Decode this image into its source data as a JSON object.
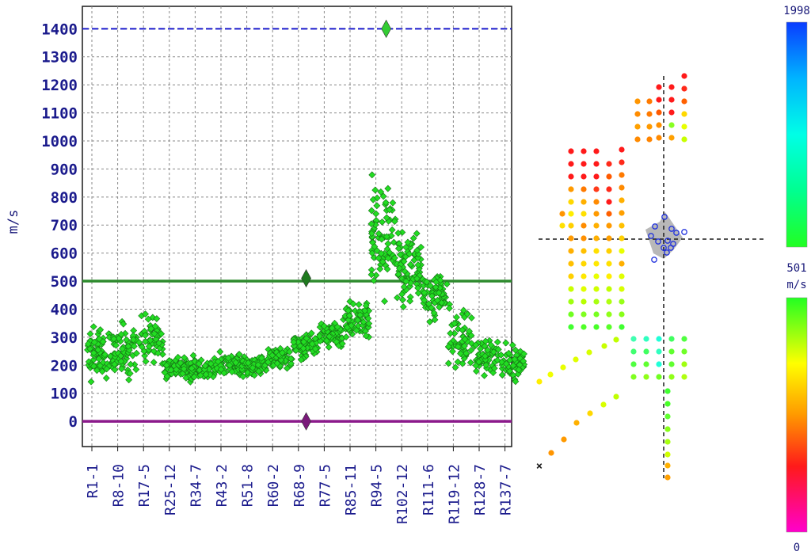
{
  "chart_data": [
    {
      "type": "scatter",
      "ylabel": "m/s",
      "ylim": [
        -90,
        1480
      ],
      "yticks": [
        0,
        100,
        200,
        300,
        400,
        500,
        600,
        700,
        800,
        900,
        1000,
        1100,
        1200,
        1300,
        1400
      ],
      "x_categories": [
        "R1-1",
        "R8-10",
        "R17-5",
        "R25-12",
        "R34-7",
        "R43-2",
        "R51-8",
        "R60-2",
        "R68-9",
        "R77-5",
        "R85-11",
        "R94-5",
        "R102-12",
        "R111-6",
        "R119-12",
        "R128-7",
        "R137-7"
      ],
      "grid": true,
      "reference_lines": [
        {
          "value": 1400,
          "color": "#1a1acc",
          "style": "dashed"
        },
        {
          "value": 500,
          "color": "#2e8b2e",
          "style": "solid"
        },
        {
          "value": 0,
          "color": "#8b1a8b",
          "style": "solid"
        }
      ],
      "marker_color": "#22dd22",
      "highlight_markers": [
        {
          "category_index": 11.4,
          "value": 1400,
          "color": "#33cc33"
        },
        {
          "category_index": 8.3,
          "value": 510,
          "color": "#1e7a1e"
        },
        {
          "category_index": 8.3,
          "value": 0,
          "color": "#7a1a7a"
        }
      ],
      "point_clusters": [
        {
          "category_index": 0.0,
          "mean": 250,
          "spread": 120,
          "count": 70
        },
        {
          "category_index": 1.0,
          "mean": 260,
          "spread": 130,
          "count": 70
        },
        {
          "category_index": 2.0,
          "mean": 300,
          "spread": 120,
          "count": 60
        },
        {
          "category_index": 3.0,
          "mean": 190,
          "spread": 50,
          "count": 70
        },
        {
          "category_index": 4.0,
          "mean": 190,
          "spread": 60,
          "count": 70
        },
        {
          "category_index": 5.0,
          "mean": 205,
          "spread": 55,
          "count": 70
        },
        {
          "category_index": 6.0,
          "mean": 200,
          "spread": 50,
          "count": 70
        },
        {
          "category_index": 7.0,
          "mean": 225,
          "spread": 55,
          "count": 70
        },
        {
          "category_index": 8.0,
          "mean": 270,
          "spread": 60,
          "count": 70
        },
        {
          "category_index": 9.0,
          "mean": 310,
          "spread": 60,
          "count": 70
        },
        {
          "category_index": 10.0,
          "mean": 360,
          "spread": 90,
          "count": 70
        },
        {
          "category_index": 11.0,
          "mean": 650,
          "spread": 260,
          "count": 80
        },
        {
          "category_index": 12.0,
          "mean": 550,
          "spread": 170,
          "count": 80
        },
        {
          "category_index": 13.0,
          "mean": 450,
          "spread": 120,
          "count": 70
        },
        {
          "category_index": 14.0,
          "mean": 300,
          "spread": 160,
          "count": 60
        },
        {
          "category_index": 15.0,
          "mean": 230,
          "spread": 90,
          "count": 60
        },
        {
          "category_index": 16.0,
          "mean": 210,
          "spread": 80,
          "count": 60
        }
      ]
    },
    {
      "type": "heatmap",
      "description_label_none": "",
      "colorbar_top": {
        "max_label": "1998",
        "min_label": "501",
        "unit": "m/s",
        "colors": [
          "#0a3cff",
          "#00b4ff",
          "#00ffe6",
          "#00ff90",
          "#22ff22"
        ]
      },
      "colorbar_bottom": {
        "max_label": "",
        "min_label": "0",
        "colors": [
          "#22ff22",
          "#ffff00",
          "#ff9900",
          "#ff1a1a",
          "#ff00cc"
        ]
      },
      "points": [
        {
          "x": 805,
          "y": 128,
          "v": "#ff9500"
        },
        {
          "x": 820,
          "y": 128,
          "v": "#ff7a00"
        },
        {
          "x": 805,
          "y": 144,
          "v": "#ff8c00"
        },
        {
          "x": 820,
          "y": 144,
          "v": "#ff7a00"
        },
        {
          "x": 805,
          "y": 160,
          "v": "#ffa000"
        },
        {
          "x": 820,
          "y": 160,
          "v": "#ff9a00"
        },
        {
          "x": 805,
          "y": 176,
          "v": "#ff8a00"
        },
        {
          "x": 820,
          "y": 176,
          "v": "#ff8400"
        },
        {
          "x": 832,
          "y": 110,
          "v": "#ff1a1a"
        },
        {
          "x": 848,
          "y": 110,
          "v": "#ff1a1a"
        },
        {
          "x": 864,
          "y": 96,
          "v": "#ff1a1a"
        },
        {
          "x": 832,
          "y": 126,
          "v": "#ff1a1a"
        },
        {
          "x": 848,
          "y": 126,
          "v": "#ff1a1a"
        },
        {
          "x": 864,
          "y": 112,
          "v": "#ff2a1a"
        },
        {
          "x": 832,
          "y": 142,
          "v": "#ff5a00"
        },
        {
          "x": 848,
          "y": 142,
          "v": "#ff1a1a"
        },
        {
          "x": 864,
          "y": 128,
          "v": "#ff6000"
        },
        {
          "x": 832,
          "y": 158,
          "v": "#ff9000"
        },
        {
          "x": 848,
          "y": 158,
          "v": "#88ff22"
        },
        {
          "x": 864,
          "y": 144,
          "v": "#ffd800"
        },
        {
          "x": 832,
          "y": 174,
          "v": "#ff8a00"
        },
        {
          "x": 848,
          "y": 174,
          "v": "#ffa000"
        },
        {
          "x": 864,
          "y": 160,
          "v": "#e8ff00"
        },
        {
          "x": 864,
          "y": 176,
          "v": "#c8ff00"
        },
        {
          "x": 721,
          "y": 191,
          "v": "#ff1a1a"
        },
        {
          "x": 737,
          "y": 191,
          "v": "#ff1a1a"
        },
        {
          "x": 753,
          "y": 191,
          "v": "#ff1a1a"
        },
        {
          "x": 785,
          "y": 189,
          "v": "#ff1a1a"
        },
        {
          "x": 721,
          "y": 207,
          "v": "#ff1a1a"
        },
        {
          "x": 737,
          "y": 207,
          "v": "#ff1a1a"
        },
        {
          "x": 753,
          "y": 207,
          "v": "#ff1a1a"
        },
        {
          "x": 769,
          "y": 207,
          "v": "#ff2a1a"
        },
        {
          "x": 785,
          "y": 205,
          "v": "#ff2a1a"
        },
        {
          "x": 721,
          "y": 223,
          "v": "#ff1a1a"
        },
        {
          "x": 737,
          "y": 223,
          "v": "#ff1a1a"
        },
        {
          "x": 753,
          "y": 223,
          "v": "#ff1a1a"
        },
        {
          "x": 769,
          "y": 223,
          "v": "#ff5a00"
        },
        {
          "x": 785,
          "y": 221,
          "v": "#ff7a00"
        },
        {
          "x": 721,
          "y": 239,
          "v": "#ff9a00"
        },
        {
          "x": 737,
          "y": 239,
          "v": "#ff7a00"
        },
        {
          "x": 753,
          "y": 239,
          "v": "#ff3a1a"
        },
        {
          "x": 769,
          "y": 239,
          "v": "#ff2a1a"
        },
        {
          "x": 785,
          "y": 237,
          "v": "#ff8a00"
        },
        {
          "x": 721,
          "y": 255,
          "v": "#ffd800"
        },
        {
          "x": 737,
          "y": 255,
          "v": "#ffb000"
        },
        {
          "x": 753,
          "y": 255,
          "v": "#ff8a00"
        },
        {
          "x": 769,
          "y": 255,
          "v": "#ff1a1a"
        },
        {
          "x": 785,
          "y": 253,
          "v": "#ffb000"
        },
        {
          "x": 710,
          "y": 270,
          "v": "#ff9500"
        },
        {
          "x": 721,
          "y": 270,
          "v": "#ffee00"
        },
        {
          "x": 737,
          "y": 270,
          "v": "#ffe000"
        },
        {
          "x": 753,
          "y": 270,
          "v": "#ff9a00"
        },
        {
          "x": 769,
          "y": 270,
          "v": "#ff6000"
        },
        {
          "x": 785,
          "y": 269,
          "v": "#ffa000"
        },
        {
          "x": 710,
          "y": 285,
          "v": "#ffe000"
        },
        {
          "x": 721,
          "y": 285,
          "v": "#ffd000"
        },
        {
          "x": 737,
          "y": 285,
          "v": "#ff8c00"
        },
        {
          "x": 753,
          "y": 285,
          "v": "#ffb000"
        },
        {
          "x": 769,
          "y": 285,
          "v": "#ff9a00"
        },
        {
          "x": 785,
          "y": 285,
          "v": "#ffc000"
        },
        {
          "x": 721,
          "y": 301,
          "v": "#ff9a00"
        },
        {
          "x": 737,
          "y": 301,
          "v": "#ff9000"
        },
        {
          "x": 753,
          "y": 301,
          "v": "#ffb000"
        },
        {
          "x": 769,
          "y": 301,
          "v": "#ffa000"
        },
        {
          "x": 785,
          "y": 301,
          "v": "#ffd000"
        },
        {
          "x": 721,
          "y": 317,
          "v": "#ffb000"
        },
        {
          "x": 737,
          "y": 317,
          "v": "#ffc000"
        },
        {
          "x": 753,
          "y": 317,
          "v": "#ffe000"
        },
        {
          "x": 769,
          "y": 317,
          "v": "#ffd000"
        },
        {
          "x": 785,
          "y": 317,
          "v": "#e8ff00"
        },
        {
          "x": 721,
          "y": 333,
          "v": "#ffc000"
        },
        {
          "x": 737,
          "y": 333,
          "v": "#ffd800"
        },
        {
          "x": 753,
          "y": 333,
          "v": "#ffe800"
        },
        {
          "x": 769,
          "y": 333,
          "v": "#ffe000"
        },
        {
          "x": 785,
          "y": 333,
          "v": "#ffb000"
        },
        {
          "x": 721,
          "y": 349,
          "v": "#ffd000"
        },
        {
          "x": 737,
          "y": 349,
          "v": "#ffe800"
        },
        {
          "x": 753,
          "y": 349,
          "v": "#e8ff00"
        },
        {
          "x": 769,
          "y": 349,
          "v": "#ffee00"
        },
        {
          "x": 785,
          "y": 349,
          "v": "#e0ff00"
        },
        {
          "x": 721,
          "y": 365,
          "v": "#c8ff00"
        },
        {
          "x": 737,
          "y": 365,
          "v": "#e0ff00"
        },
        {
          "x": 753,
          "y": 365,
          "v": "#d0ff00"
        },
        {
          "x": 769,
          "y": 365,
          "v": "#c0ff00"
        },
        {
          "x": 785,
          "y": 365,
          "v": "#d8ff00"
        },
        {
          "x": 721,
          "y": 381,
          "v": "#a0ff10"
        },
        {
          "x": 737,
          "y": 381,
          "v": "#b8ff00"
        },
        {
          "x": 753,
          "y": 381,
          "v": "#a8ff10"
        },
        {
          "x": 769,
          "y": 381,
          "v": "#b0ff10"
        },
        {
          "x": 785,
          "y": 381,
          "v": "#98ff18"
        },
        {
          "x": 721,
          "y": 397,
          "v": "#70ff20"
        },
        {
          "x": 737,
          "y": 397,
          "v": "#80ff20"
        },
        {
          "x": 753,
          "y": 397,
          "v": "#78ff20"
        },
        {
          "x": 769,
          "y": 397,
          "v": "#90ff18"
        },
        {
          "x": 785,
          "y": 397,
          "v": "#88ff18"
        },
        {
          "x": 721,
          "y": 413,
          "v": "#40ff30"
        },
        {
          "x": 737,
          "y": 413,
          "v": "#50ff28"
        },
        {
          "x": 753,
          "y": 413,
          "v": "#48ff28"
        },
        {
          "x": 769,
          "y": 413,
          "v": "#58ff28"
        },
        {
          "x": 785,
          "y": 413,
          "v": "#40ff30"
        },
        {
          "x": 800,
          "y": 428,
          "v": "#40ffb0"
        },
        {
          "x": 816,
          "y": 428,
          "v": "#30ffc0"
        },
        {
          "x": 832,
          "y": 428,
          "v": "#20ffd8"
        },
        {
          "x": 848,
          "y": 428,
          "v": "#40ff60"
        },
        {
          "x": 864,
          "y": 428,
          "v": "#50ff40"
        },
        {
          "x": 800,
          "y": 444,
          "v": "#40ff70"
        },
        {
          "x": 816,
          "y": 444,
          "v": "#40ff60"
        },
        {
          "x": 832,
          "y": 444,
          "v": "#30ffc0"
        },
        {
          "x": 848,
          "y": 444,
          "v": "#60ff30"
        },
        {
          "x": 864,
          "y": 444,
          "v": "#70ff28"
        },
        {
          "x": 800,
          "y": 460,
          "v": "#50ff40"
        },
        {
          "x": 816,
          "y": 460,
          "v": "#60ff30"
        },
        {
          "x": 832,
          "y": 460,
          "v": "#20ffd8"
        },
        {
          "x": 848,
          "y": 460,
          "v": "#60ff30"
        },
        {
          "x": 864,
          "y": 460,
          "v": "#a0ff10"
        },
        {
          "x": 800,
          "y": 476,
          "v": "#80ff20"
        },
        {
          "x": 816,
          "y": 476,
          "v": "#90ff18"
        },
        {
          "x": 832,
          "y": 476,
          "v": "#70ff20"
        },
        {
          "x": 848,
          "y": 476,
          "v": "#90ff18"
        },
        {
          "x": 864,
          "y": 476,
          "v": "#b0ff10"
        },
        {
          "x": 778,
          "y": 429,
          "v": "#c0ff00"
        },
        {
          "x": 763,
          "y": 437,
          "v": "#c8ff00"
        },
        {
          "x": 744,
          "y": 445,
          "v": "#d8ff00"
        },
        {
          "x": 727,
          "y": 454,
          "v": "#e0ff00"
        },
        {
          "x": 711,
          "y": 464,
          "v": "#e8ff00"
        },
        {
          "x": 695,
          "y": 473,
          "v": "#f0ff00"
        },
        {
          "x": 681,
          "y": 482,
          "v": "#ffee00"
        },
        {
          "x": 778,
          "y": 501,
          "v": "#c0ff00"
        },
        {
          "x": 762,
          "y": 511,
          "v": "#d8ff00"
        },
        {
          "x": 745,
          "y": 522,
          "v": "#ffd800"
        },
        {
          "x": 728,
          "y": 534,
          "v": "#ffb000"
        },
        {
          "x": 712,
          "y": 555,
          "v": "#ff9a00"
        },
        {
          "x": 696,
          "y": 572,
          "v": "#ff9500"
        },
        {
          "x": 843,
          "y": 494,
          "v": "#40ff30"
        },
        {
          "x": 843,
          "y": 510,
          "v": "#48ff28"
        },
        {
          "x": 843,
          "y": 526,
          "v": "#60ff30"
        },
        {
          "x": 843,
          "y": 542,
          "v": "#88ff18"
        },
        {
          "x": 843,
          "y": 558,
          "v": "#a8ff10"
        },
        {
          "x": 843,
          "y": 574,
          "v": "#d0ff00"
        },
        {
          "x": 843,
          "y": 588,
          "v": "#ffb000"
        },
        {
          "x": 843,
          "y": 603,
          "v": "#ffa000"
        }
      ],
      "circles": [
        {
          "x": 839,
          "y": 274
        },
        {
          "x": 827,
          "y": 286
        },
        {
          "x": 848,
          "y": 289
        },
        {
          "x": 822,
          "y": 298
        },
        {
          "x": 854,
          "y": 294
        },
        {
          "x": 864,
          "y": 293
        },
        {
          "x": 831,
          "y": 305
        },
        {
          "x": 843,
          "y": 304
        },
        {
          "x": 850,
          "y": 308
        },
        {
          "x": 838,
          "y": 313
        },
        {
          "x": 847,
          "y": 313
        },
        {
          "x": 842,
          "y": 319
        },
        {
          "x": 826,
          "y": 328
        }
      ]
    }
  ]
}
